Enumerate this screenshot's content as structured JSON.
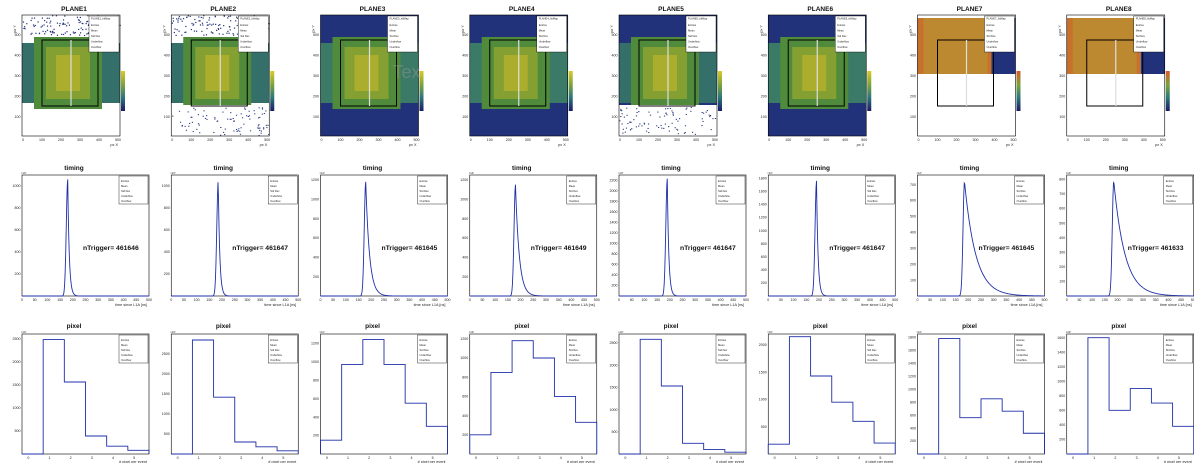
{
  "planes": [
    {
      "title": "PLANE1",
      "stat_name": "PLANE1_hitMap",
      "ntrigger_text": "nTrigger= 461646",
      "timing_ymax_label": "1000",
      "timing_ymax": 1100,
      "timing_peak": 1060,
      "timing_peak_x": 180,
      "timing_tail": "narrow",
      "pixel_ymax": 2600,
      "pixel_values": [
        0,
        2480,
        1560,
        390,
        170,
        80
      ],
      "hitmap": {
        "left_bg": true,
        "top_bg": true,
        "low_band": false,
        "wide_band": false,
        "warm": false
      }
    },
    {
      "title": "PLANE2",
      "stat_name": "PLANE2_hitMap",
      "ntrigger_text": "nTrigger= 461647",
      "timing_ymax_label": "1000",
      "timing_ymax": 1100,
      "timing_peak": 1050,
      "timing_peak_x": 185,
      "timing_tail": "narrow",
      "pixel_ymax": 3000,
      "pixel_values": [
        0,
        2850,
        1420,
        300,
        180,
        80
      ],
      "hitmap": {
        "left_bg": true,
        "top_bg": true,
        "low_band": true,
        "wide_band": false,
        "warm": false
      }
    },
    {
      "title": "PLANE3",
      "stat_name": "PLANE3_hitMap",
      "ntrigger_text": "nTrigger= 461645",
      "timing_ymax_label": "1200",
      "timing_ymax": 1250,
      "timing_peak": 1180,
      "timing_peak_x": 178,
      "timing_tail": "medium",
      "pixel_ymax": 1300,
      "pixel_values": [
        150,
        970,
        1240,
        970,
        550,
        300
      ],
      "hitmap": {
        "left_bg": false,
        "top_bg": false,
        "low_band": false,
        "wide_band": true,
        "warm": false
      },
      "watermark": "Tex"
    },
    {
      "title": "PLANE4",
      "stat_name": "PLANE4_hitMap",
      "ntrigger_text": "nTrigger= 461649",
      "timing_ymax_label": "1200",
      "timing_ymax": 1250,
      "timing_peak": 1150,
      "timing_peak_x": 180,
      "timing_tail": "medium",
      "pixel_ymax": 1250,
      "pixel_values": [
        200,
        850,
        1180,
        1000,
        600,
        330
      ],
      "hitmap": {
        "left_bg": false,
        "top_bg": false,
        "low_band": false,
        "wide_band": true,
        "warm": false
      }
    },
    {
      "title": "PLANE5",
      "stat_name": "PLANE5_hitMap",
      "ntrigger_text": "nTrigger= 461647",
      "timing_ymax_label": "2200",
      "timing_ymax": 2300,
      "timing_peak": 2230,
      "timing_peak_x": 190,
      "timing_tail": "narrow",
      "pixel_ymax": 2700,
      "pixel_values": [
        0,
        2580,
        1530,
        240,
        100,
        40
      ],
      "hitmap": {
        "left_bg": false,
        "top_bg": false,
        "low_band": true,
        "wide_band": false,
        "warm": false
      }
    },
    {
      "title": "PLANE6",
      "stat_name": "PLANE6_hitMap",
      "ntrigger_text": "nTrigger= 461647",
      "timing_ymax_label": "1800",
      "timing_ymax": 1850,
      "timing_peak": 1760,
      "timing_peak_x": 190,
      "timing_tail": "narrow",
      "pixel_ymax": 2200,
      "pixel_values": [
        180,
        2150,
        1430,
        950,
        600,
        200
      ],
      "hitmap": {
        "left_bg": false,
        "top_bg": false,
        "low_band": false,
        "wide_band": true,
        "warm": false
      }
    },
    {
      "title": "PLANE7",
      "stat_name": "PLANE7_hitMap",
      "ntrigger_text": "nTrigger= 461645",
      "timing_ymax_label": "700",
      "timing_ymax": 760,
      "timing_peak": 720,
      "timing_peak_x": 185,
      "timing_tail": "wide",
      "pixel_ymax": 1850,
      "pixel_values": [
        0,
        1780,
        560,
        850,
        660,
        320
      ],
      "hitmap": {
        "left_bg": false,
        "top_bg": false,
        "low_band": false,
        "wide_band": false,
        "warm": true
      }
    },
    {
      "title": "PLANE8",
      "stat_name": "PLANE8_hitMap",
      "ntrigger_text": "nTrigger= 461633",
      "timing_ymax_label": "800",
      "timing_ymax": 830,
      "timing_peak": 790,
      "timing_peak_x": 185,
      "timing_tail": "wide",
      "pixel_ymax": 1650,
      "pixel_values": [
        0,
        1600,
        600,
        900,
        700,
        380
      ],
      "hitmap": {
        "left_bg": false,
        "top_bg": false,
        "low_band": false,
        "wide_band": false,
        "warm": true
      }
    }
  ],
  "labels": {
    "hitmap_xlabel": "px X",
    "hitmap_ylabel": "px Y",
    "timing_title": "timing",
    "timing_xlabel": "time since L1A [ns]",
    "pixel_title": "pixel",
    "pixel_xlabel": "# pixel per event",
    "exp_label": "×10³",
    "stat_rows": [
      "Entries",
      "Mean",
      "Std Dev",
      "Underflow",
      "Overflow"
    ]
  },
  "chart_data": [
    {
      "type": "heatmap",
      "title": "PLANE1..PLANE8",
      "xlabel": "px X",
      "ylabel": "px Y",
      "xlim": [
        0,
        512
      ],
      "ylim": [
        0,
        512
      ]
    },
    {
      "type": "line",
      "title": "timing",
      "xlabel": "time since L1A [ns]",
      "xlim": [
        0,
        500
      ],
      "series": [
        {
          "values": [
            1060
          ]
        },
        {
          "values": [
            1050
          ]
        },
        {
          "values": [
            1180
          ]
        },
        {
          "values": [
            1150
          ]
        },
        {
          "values": [
            2230
          ]
        },
        {
          "values": [
            1760
          ]
        },
        {
          "values": [
            720
          ]
        },
        {
          "values": [
            790
          ]
        }
      ]
    },
    {
      "type": "bar",
      "title": "pixel",
      "xlabel": "# pixel per event",
      "categories": [
        "0",
        "1",
        "2",
        "3",
        "4",
        "5"
      ],
      "series": [
        {
          "values": [
            0,
            2480,
            1560,
            390,
            170,
            80
          ]
        },
        {
          "values": [
            0,
            2850,
            1420,
            300,
            180,
            80
          ]
        },
        {
          "values": [
            150,
            970,
            1240,
            970,
            550,
            300
          ]
        },
        {
          "values": [
            200,
            850,
            1180,
            1000,
            600,
            330
          ]
        },
        {
          "values": [
            0,
            2580,
            1530,
            240,
            100,
            40
          ]
        },
        {
          "values": [
            180,
            2150,
            1430,
            950,
            600,
            200
          ]
        },
        {
          "values": [
            0,
            1780,
            560,
            850,
            660,
            320
          ]
        },
        {
          "values": [
            0,
            1600,
            600,
            900,
            700,
            380
          ]
        }
      ]
    }
  ],
  "colors": {
    "dark_blue": "#22327a",
    "mid_green": "#4f8b3a",
    "hot_yellow": "#c4b52a",
    "warm_orange": "#c8712c",
    "frame": "#000000",
    "line_blue": "#1f2fa8"
  }
}
